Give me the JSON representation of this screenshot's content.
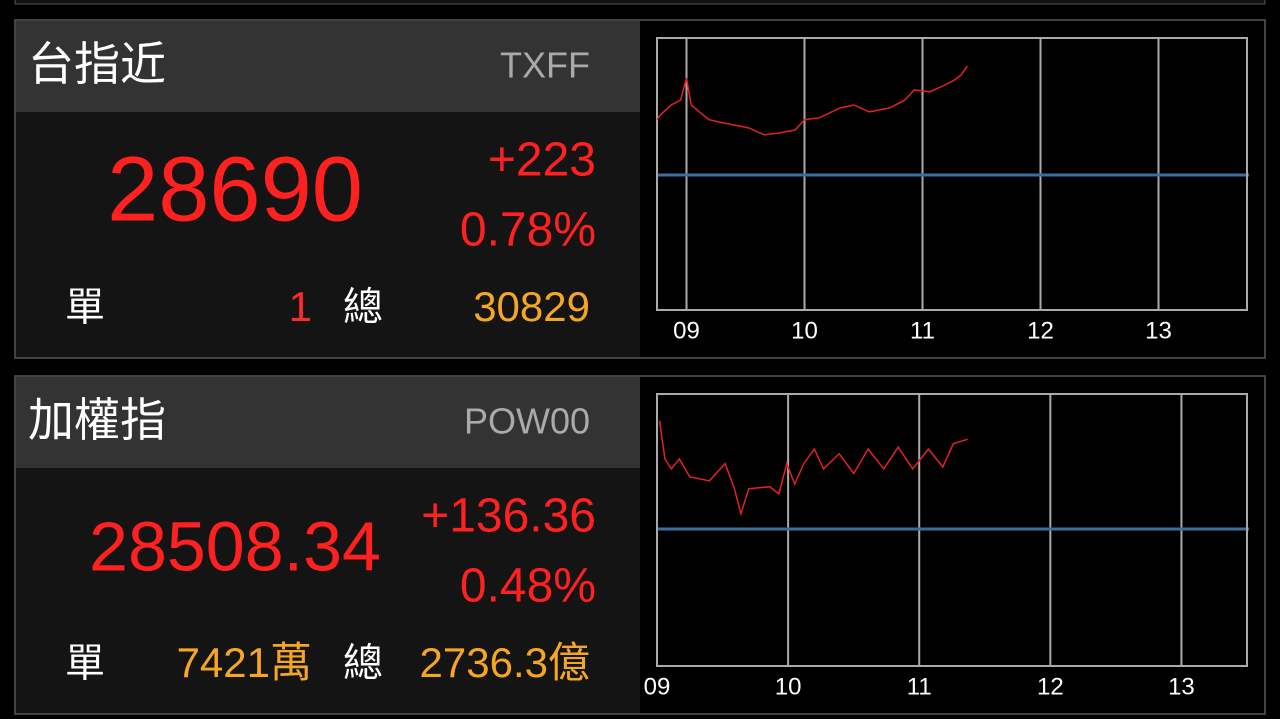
{
  "panels": [
    {
      "name": "台指近",
      "code": "TXFF",
      "price": "28690",
      "change": "+223",
      "change_pct": "0.78%",
      "single_label": "單",
      "single_value": "1",
      "single_color": "#ff2a2a",
      "total_label": "總",
      "total_value": "30829",
      "chart_data": {
        "type": "line",
        "x": [
          8.75,
          8.78,
          8.87,
          8.95,
          9.0,
          9.04,
          9.11,
          9.19,
          9.28,
          9.41,
          9.53,
          9.66,
          9.79,
          9.92,
          10.0,
          10.13,
          10.3,
          10.42,
          10.55,
          10.72,
          10.85,
          10.93,
          11.06,
          11.19,
          11.27,
          11.33,
          11.38
        ],
        "values": [
          28580,
          28590,
          28610,
          28620,
          28665,
          28610,
          28596,
          28580,
          28575,
          28569,
          28563,
          28549,
          28553,
          28559,
          28580,
          28584,
          28604,
          28610,
          28596,
          28604,
          28620,
          28641,
          28637,
          28651,
          28661,
          28672,
          28690
        ],
        "color": "#e32222",
        "reference": 28467,
        "reference_color": "#3a6e9e",
        "xlim": [
          8.75,
          13.75
        ],
        "ylim": [
          28191,
          28747
        ],
        "xticks": [
          {
            "value": 9,
            "label": "09"
          },
          10,
          11,
          12,
          13
        ],
        "grid": true
      }
    },
    {
      "name": "加權指",
      "code": "POW00",
      "price": "28508.34",
      "change": "+136.36",
      "change_pct": "0.48%",
      "single_label": "單",
      "single_value": "7421萬",
      "single_color": "#f5a623",
      "total_label": "總",
      "total_value": "2736.3億",
      "chart_data": {
        "type": "line",
        "x": [
          9.02,
          9.06,
          9.11,
          9.17,
          9.25,
          9.4,
          9.52,
          9.59,
          9.64,
          9.7,
          9.86,
          9.93,
          9.99,
          10.05,
          10.12,
          10.2,
          10.27,
          10.39,
          10.5,
          10.61,
          10.73,
          10.84,
          10.95,
          11.07,
          11.18,
          11.26,
          11.37
        ],
        "values": [
          28536,
          28478,
          28463,
          28478,
          28451,
          28445,
          28471,
          28433,
          28395,
          28433,
          28436,
          28425,
          28471,
          28440,
          28471,
          28493,
          28463,
          28486,
          28456,
          28493,
          28463,
          28496,
          28463,
          28493,
          28466,
          28501,
          28508
        ],
        "color": "#e32222",
        "reference": 28371.98,
        "reference_color": "#3a6e9e",
        "xlim": [
          9,
          13.5
        ],
        "ylim": [
          28164.4,
          28576.5
        ],
        "xticks": [
          {
            "value": 9,
            "label": "09"
          },
          10,
          11,
          12,
          13
        ],
        "grid": true
      }
    }
  ]
}
